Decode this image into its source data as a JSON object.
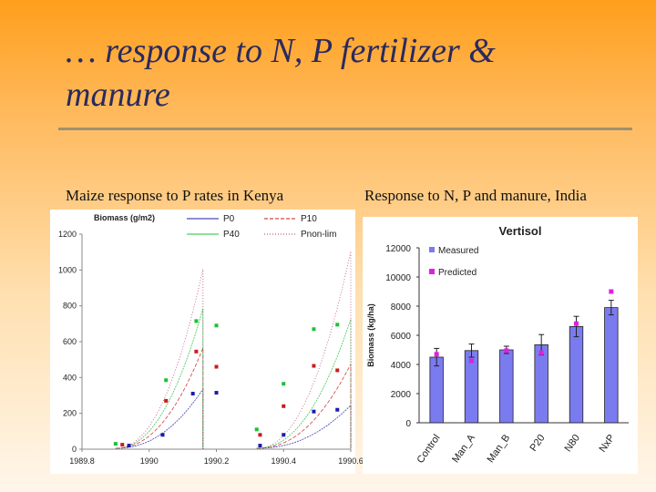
{
  "slide": {
    "title_line1": "… response to N, P fertilizer &",
    "title_line2": "manure",
    "left_caption": "Maize response to P rates  in Kenya",
    "right_caption": "Response to N, P and manure, India"
  },
  "chart_data": [
    {
      "type": "scatter",
      "ylabel": "Biomass (g/m2)",
      "x_ticks": [
        "1989.8",
        "1990",
        "1990.2",
        "1990.4",
        "1990.6"
      ],
      "xlim": [
        1989.8,
        1990.6
      ],
      "ylim": [
        0,
        1200
      ],
      "y_ticks": [
        0,
        200,
        400,
        600,
        800,
        1000,
        1200
      ],
      "legend": [
        "P0",
        "P10",
        "P40",
        "Pnon-lim"
      ],
      "colors": {
        "P0": "#1c1ca8",
        "P10": "#cc1b1b",
        "P40": "#1fbf3a",
        "Pnon-lim": "#b0306f"
      },
      "series": [
        {
          "name": "P0",
          "observed": [
            [
              1989.94,
              20
            ],
            [
              1990.04,
              80
            ],
            [
              1990.13,
              310
            ],
            [
              1990.2,
              315
            ],
            [
              1990.33,
              20
            ],
            [
              1990.4,
              80
            ],
            [
              1990.49,
              210
            ],
            [
              1990.56,
              220
            ]
          ]
        },
        {
          "name": "P10",
          "observed": [
            [
              1989.92,
              25
            ],
            [
              1990.05,
              270
            ],
            [
              1990.14,
              545
            ],
            [
              1990.2,
              460
            ],
            [
              1990.33,
              80
            ],
            [
              1990.4,
              240
            ],
            [
              1990.49,
              465
            ],
            [
              1990.56,
              440
            ]
          ]
        },
        {
          "name": "P40",
          "observed": [
            [
              1989.9,
              30
            ],
            [
              1990.05,
              385
            ],
            [
              1990.14,
              715
            ],
            [
              1990.2,
              690
            ],
            [
              1990.32,
              110
            ],
            [
              1990.4,
              365
            ],
            [
              1990.49,
              670
            ],
            [
              1990.56,
              695
            ]
          ]
        },
        {
          "name": "Pnon-lim",
          "observed": []
        }
      ]
    },
    {
      "type": "bar",
      "title": "Vertisol",
      "ylabel": "Biomass (kg/ha)",
      "categories": [
        "Control",
        "Man_A",
        "Man_B",
        "P20",
        "N80",
        "NxP"
      ],
      "ylim": [
        0,
        12000
      ],
      "y_ticks": [
        0,
        2000,
        4000,
        6000,
        8000,
        10000,
        12000
      ],
      "legend": [
        "Measured",
        "Predicted"
      ],
      "series": [
        {
          "name": "Measured",
          "values": [
            4500,
            4950,
            5000,
            5350,
            6600,
            7900
          ],
          "errors": [
            600,
            450,
            250,
            700,
            700,
            500
          ],
          "color": "#7b7bf0"
        },
        {
          "name": "Predicted",
          "values": [
            4700,
            4250,
            4950,
            4800,
            6800,
            9000
          ],
          "color": "#e020e0"
        }
      ]
    }
  ]
}
